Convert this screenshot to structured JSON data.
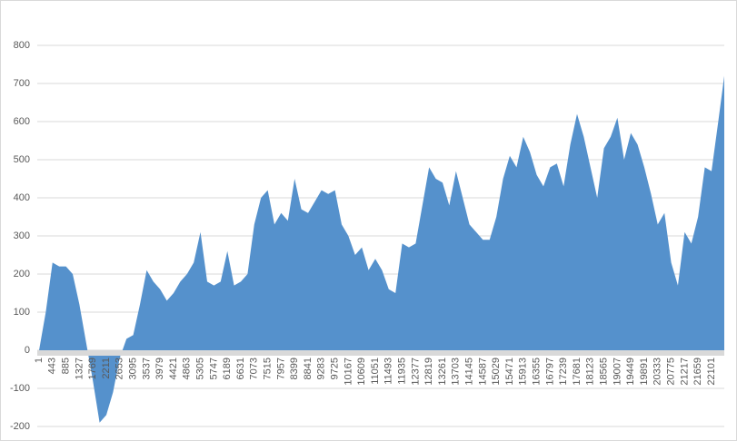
{
  "chart_data": {
    "type": "area",
    "color": "#5591cc",
    "grid": true,
    "x": [
      1,
      221,
      443,
      664,
      885,
      1106,
      1327,
      1548,
      1769,
      1990,
      2211,
      2432,
      2653,
      2874,
      3095,
      3316,
      3537,
      3758,
      3979,
      4200,
      4421,
      4642,
      4863,
      5084,
      5305,
      5526,
      5747,
      5968,
      6189,
      6410,
      6631,
      6852,
      7073,
      7294,
      7515,
      7736,
      7957,
      8178,
      8399,
      8620,
      8841,
      9062,
      9283,
      9504,
      9725,
      9946,
      10167,
      10388,
      10609,
      10830,
      11051,
      11272,
      11493,
      11714,
      11935,
      12156,
      12377,
      12598,
      12819,
      13040,
      13261,
      13482,
      13703,
      13924,
      14145,
      14366,
      14587,
      14808,
      15029,
      15250,
      15471,
      15692,
      15913,
      16134,
      16355,
      16576,
      16797,
      17018,
      17239,
      17460,
      17681,
      17902,
      18123,
      18344,
      18565,
      18786,
      19007,
      19228,
      19449,
      19670,
      19891,
      20112,
      20333,
      20554,
      20775,
      20996,
      21217,
      21438,
      21659,
      21880,
      22101,
      22322,
      22520
    ],
    "values": [
      0,
      100,
      230,
      220,
      220,
      200,
      120,
      20,
      -80,
      -190,
      -170,
      -110,
      -20,
      30,
      40,
      120,
      210,
      180,
      160,
      130,
      150,
      180,
      200,
      230,
      310,
      180,
      170,
      180,
      260,
      170,
      180,
      200,
      330,
      400,
      420,
      330,
      360,
      340,
      450,
      370,
      360,
      390,
      420,
      410,
      420,
      330,
      300,
      250,
      270,
      210,
      240,
      210,
      160,
      150,
      280,
      270,
      280,
      380,
      480,
      450,
      440,
      380,
      470,
      400,
      330,
      310,
      290,
      290,
      350,
      450,
      510,
      480,
      560,
      520,
      460,
      430,
      480,
      490,
      430,
      540,
      620,
      560,
      480,
      400,
      530,
      560,
      610,
      500,
      570,
      540,
      480,
      410,
      330,
      360,
      230,
      170,
      310,
      280,
      350,
      480,
      470,
      600,
      720
    ],
    "xlim": [
      1,
      22520
    ],
    "xticks": [
      1,
      443,
      885,
      1327,
      1769,
      2211,
      2653,
      3095,
      3537,
      3979,
      4421,
      4863,
      5305,
      5747,
      6189,
      6631,
      7073,
      7515,
      7957,
      8399,
      8841,
      9283,
      9725,
      10167,
      10609,
      11051,
      11493,
      11935,
      12377,
      12819,
      13261,
      13703,
      14145,
      14587,
      15029,
      15471,
      15913,
      16355,
      16797,
      17239,
      17681,
      18123,
      18565,
      19007,
      19449,
      19891,
      20333,
      20775,
      21217,
      21659,
      22101
    ],
    "ylim": [
      -200,
      800
    ],
    "yticks": [
      -200,
      -100,
      0,
      100,
      200,
      300,
      400,
      500,
      600,
      700,
      800
    ]
  }
}
